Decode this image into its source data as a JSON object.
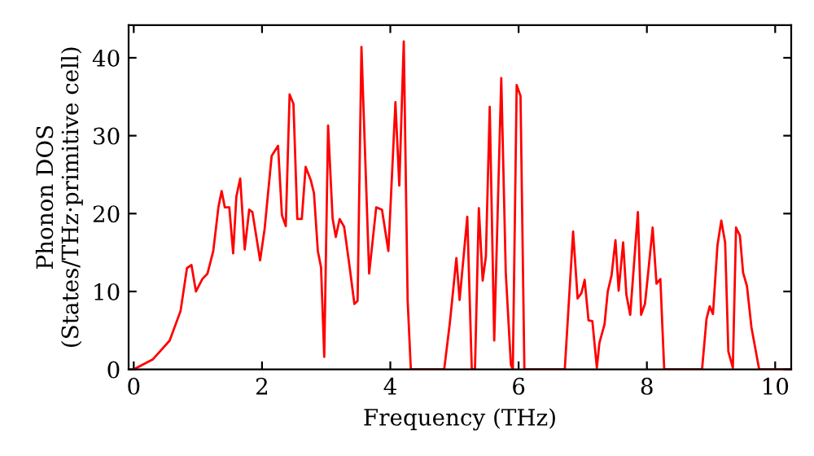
{
  "chart_data": {
    "type": "line",
    "xlabel": "Frequency (THz)",
    "ylabel": "Phonon DOS\n(States/THz·primitive cell)",
    "xlim": [
      -0.08,
      10.25
    ],
    "ylim": [
      0,
      44.2
    ],
    "xticks": [
      0,
      2,
      4,
      6,
      8,
      10
    ],
    "yticks": [
      0,
      10,
      20,
      30,
      40
    ],
    "grid": false,
    "legend": false,
    "marker": "none",
    "line_style": "solid",
    "series": [
      {
        "color": "#ff0000",
        "x": [
          0,
          0.3,
          0.56,
          0.73,
          0.83,
          0.9,
          0.97,
          1.07,
          1.15,
          1.24,
          1.32,
          1.37,
          1.42,
          1.49,
          1.55,
          1.6,
          1.66,
          1.73,
          1.8,
          1.85,
          1.97,
          2.04,
          2.15,
          2.25,
          2.31,
          2.37,
          2.43,
          2.49,
          2.55,
          2.62,
          2.68,
          2.76,
          2.81,
          2.87,
          2.92,
          2.97,
          3.03,
          3.1,
          3.15,
          3.21,
          3.28,
          3.36,
          3.44,
          3.49,
          3.55,
          3.67,
          3.78,
          3.87,
          3.97,
          4.08,
          4.14,
          4.21,
          4.27,
          4.32,
          4.84,
          4.93,
          5.03,
          5.08,
          5.2,
          5.27,
          5.32,
          5.38,
          5.44,
          5.49,
          5.55,
          5.62,
          5.73,
          5.8,
          5.88,
          5.91,
          5.97,
          6.03,
          6.09,
          6.72,
          6.85,
          6.92,
          6.98,
          7.03,
          7.09,
          7.15,
          7.22,
          7.26,
          7.34,
          7.39,
          7.45,
          7.51,
          7.56,
          7.63,
          7.68,
          7.74,
          7.86,
          7.91,
          7.97,
          8.02,
          8.09,
          8.15,
          8.21,
          8.27,
          8.86,
          8.93,
          8.98,
          9.03,
          9.1,
          9.16,
          9.22,
          9.27,
          9.34,
          9.39,
          9.45,
          9.5,
          9.56,
          9.63,
          9.75,
          10.25
        ],
        "values": [
          0,
          1.3,
          3.7,
          7.5,
          13,
          13.4,
          10,
          11.6,
          12.3,
          15.2,
          20.8,
          22.9,
          20.8,
          20.8,
          14.9,
          22.2,
          24.5,
          15.4,
          20.5,
          20.2,
          14,
          18,
          27.4,
          28.7,
          19.8,
          18.4,
          35.3,
          34.1,
          19.3,
          19.3,
          26,
          24.3,
          22.6,
          15.2,
          13.1,
          1.6,
          31.3,
          19.4,
          17,
          19.3,
          18.3,
          13.5,
          8.4,
          8.8,
          41.4,
          12.3,
          20.8,
          20.5,
          15.2,
          34.3,
          23.6,
          42.1,
          8.9,
          0,
          0,
          6.1,
          14.3,
          8.9,
          19.6,
          0,
          0,
          20.7,
          11.4,
          14.5,
          33.7,
          3.7,
          37.4,
          12.4,
          0.6,
          0,
          36.5,
          35.1,
          0,
          0,
          17.7,
          9.1,
          9.8,
          11.5,
          6.3,
          6.2,
          0.2,
          3.4,
          5.8,
          10,
          12.1,
          16.6,
          10.1,
          16.3,
          9.6,
          7,
          20.2,
          7,
          8.4,
          12.4,
          18.2,
          11,
          11.6,
          0,
          0,
          6.5,
          8.1,
          7.1,
          15.9,
          19.1,
          16.3,
          2.3,
          0.2,
          18.2,
          17.2,
          12.4,
          10.7,
          5.4,
          0,
          0
        ]
      }
    ]
  }
}
